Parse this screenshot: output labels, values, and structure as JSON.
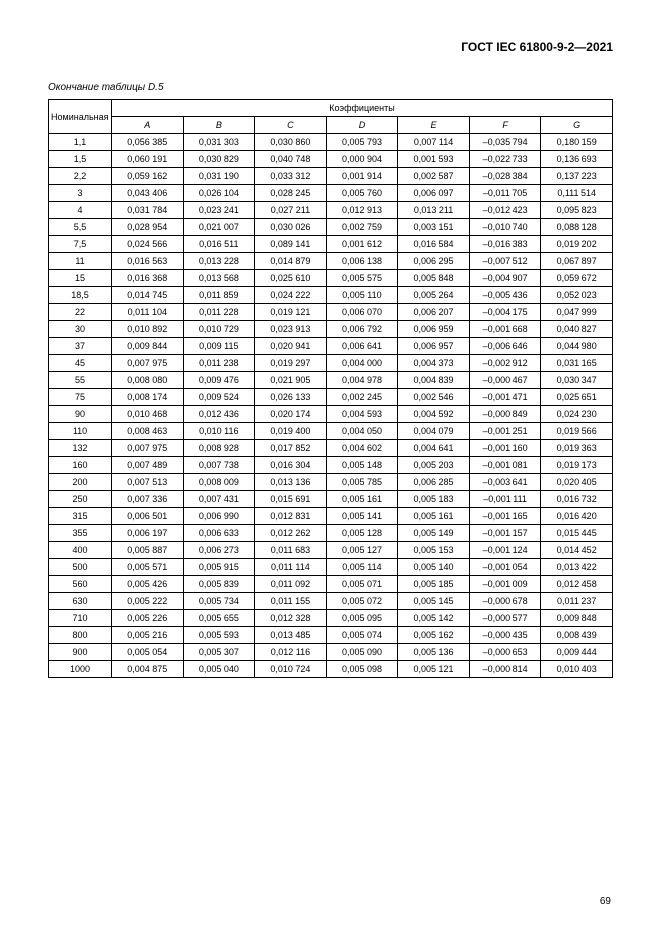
{
  "doc_header": "ГОСТ IEC 61800-9-2—2021",
  "table_caption": "Окончание таблицы D.5",
  "table": {
    "header_rowspan_label": "Номинальная мощность",
    "coef_header": "Коэффициенты",
    "columns": [
      "A",
      "B",
      "C",
      "D",
      "E",
      "F",
      "G"
    ],
    "rows": [
      [
        "1,1",
        "0,056 385",
        "0,031 303",
        "0,030 860",
        "0,005 793",
        "0,007 114",
        "–0,035 794",
        "0,180 159"
      ],
      [
        "1,5",
        "0,060 191",
        "0,030 829",
        "0,040 748",
        "0,000 904",
        "0,001 593",
        "–0,022 733",
        "0,136 693"
      ],
      [
        "2,2",
        "0,059 162",
        "0,031 190",
        "0,033 312",
        "0,001 914",
        "0,002 587",
        "–0,028 384",
        "0,137 223"
      ],
      [
        "3",
        "0,043 406",
        "0,026 104",
        "0,028 245",
        "0,005 760",
        "0,006 097",
        "–0,011 705",
        "0,111 514"
      ],
      [
        "4",
        "0,031 784",
        "0,023 241",
        "0,027 211",
        "0,012 913",
        "0,013 211",
        "–0,012 423",
        "0,095 823"
      ],
      [
        "5,5",
        "0,028 954",
        "0,021 007",
        "0,030 026",
        "0,002 759",
        "0,003 151",
        "–0,010 740",
        "0,088 128"
      ],
      [
        "7,5",
        "0,024 566",
        "0,016 511",
        "0,089 141",
        "0,001 612",
        "0,016 584",
        "–0,016 383",
        "0,019 202"
      ],
      [
        "11",
        "0,016 563",
        "0,013 228",
        "0,014 879",
        "0,006 138",
        "0,006 295",
        "–0,007 512",
        "0,067 897"
      ],
      [
        "15",
        "0,016 368",
        "0,013 568",
        "0,025 610",
        "0,005 575",
        "0,005 848",
        "–0,004 907",
        "0,059 672"
      ],
      [
        "18,5",
        "0,014 745",
        "0,011 859",
        "0,024 222",
        "0,005 110",
        "0,005 264",
        "–0,005 436",
        "0,052 023"
      ],
      [
        "22",
        "0,011 104",
        "0,011 228",
        "0,019 121",
        "0,006 070",
        "0,006 207",
        "–0,004 175",
        "0,047 999"
      ],
      [
        "30",
        "0,010 892",
        "0,010 729",
        "0,023 913",
        "0,006 792",
        "0,006 959",
        "–0,001 668",
        "0,040 827"
      ],
      [
        "37",
        "0,009 844",
        "0,009 115",
        "0,020 941",
        "0,006 641",
        "0,006 957",
        "–0,006 646",
        "0,044 980"
      ],
      [
        "45",
        "0,007 975",
        "0,011 238",
        "0,019 297",
        "0,004 000",
        "0,004 373",
        "–0,002 912",
        "0,031 165"
      ],
      [
        "55",
        "0,008 080",
        "0,009 476",
        "0,021 905",
        "0,004 978",
        "0,004 839",
        "–0,000 467",
        "0,030 347"
      ],
      [
        "75",
        "0,008 174",
        "0,009 524",
        "0,026 133",
        "0,002 245",
        "0,002 546",
        "–0,001 471",
        "0,025 651"
      ],
      [
        "90",
        "0,010 468",
        "0,012 436",
        "0,020 174",
        "0,004 593",
        "0,004 592",
        "–0,000 849",
        "0,024 230"
      ],
      [
        "110",
        "0,008 463",
        "0,010 116",
        "0,019 400",
        "0,004 050",
        "0,004 079",
        "–0,001 251",
        "0,019 566"
      ],
      [
        "132",
        "0,007 975",
        "0,008 928",
        "0,017 852",
        "0,004 602",
        "0,004 641",
        "–0,001 160",
        "0,019 363"
      ],
      [
        "160",
        "0,007 489",
        "0,007 738",
        "0,016 304",
        "0,005 148",
        "0,005 203",
        "–0,001 081",
        "0,019 173"
      ],
      [
        "200",
        "0,007 513",
        "0,008 009",
        "0,013 136",
        "0,005 785",
        "0,006 285",
        "–0,003 641",
        "0,020 405"
      ],
      [
        "250",
        "0,007 336",
        "0,007 431",
        "0,015 691",
        "0,005 161",
        "0,005 183",
        "–0,001 111",
        "0,016 732"
      ],
      [
        "315",
        "0,006 501",
        "0,006 990",
        "0,012 831",
        "0,005 141",
        "0,005 161",
        "–0,001 165",
        "0,016 420"
      ],
      [
        "355",
        "0,006 197",
        "0,006 633",
        "0,012 262",
        "0,005 128",
        "0,005 149",
        "–0,001 157",
        "0,015 445"
      ],
      [
        "400",
        "0,005 887",
        "0,006 273",
        "0,011 683",
        "0,005 127",
        "0,005 153",
        "–0,001 124",
        "0,014 452"
      ],
      [
        "500",
        "0,005 571",
        "0,005 915",
        "0,011 114",
        "0,005 114",
        "0,005 140",
        "–0,001 054",
        "0,013 422"
      ],
      [
        "560",
        "0,005 426",
        "0,005 839",
        "0,011 092",
        "0,005 071",
        "0,005 185",
        "–0,001 009",
        "0,012 458"
      ],
      [
        "630",
        "0,005 222",
        "0,005 734",
        "0,011 155",
        "0,005 072",
        "0,005 145",
        "–0,000 678",
        "0,011 237"
      ],
      [
        "710",
        "0,005 226",
        "0,005 655",
        "0,012 328",
        "0,005 095",
        "0,005 142",
        "–0,000 577",
        "0,009 848"
      ],
      [
        "800",
        "0,005 216",
        "0,005 593",
        "0,013 485",
        "0,005 074",
        "0,005 162",
        "–0,000 435",
        "0,008 439"
      ],
      [
        "900",
        "0,005 054",
        "0,005 307",
        "0,012 116",
        "0,005 090",
        "0,005 136",
        "–0,000 653",
        "0,009 444"
      ],
      [
        "1000",
        "0,004 875",
        "0,005 040",
        "0,010 724",
        "0,005 098",
        "0,005 121",
        "–0,000 814",
        "0,010 403"
      ]
    ]
  },
  "page_number": "69"
}
